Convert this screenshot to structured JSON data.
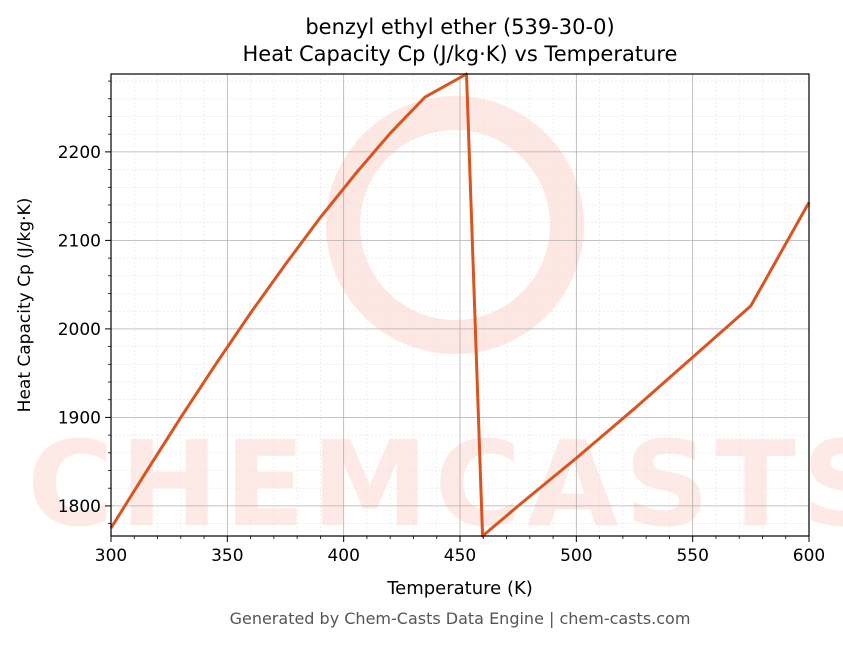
{
  "chart_data": {
    "type": "line",
    "title": "benzyl ethyl ether (539-30-0)",
    "subtitle": "Heat Capacity Cp (J/kg·K) vs Temperature",
    "xlabel": "Temperature (K)",
    "ylabel": "Heat Capacity Cp (J/kg·K)",
    "xlim": [
      300,
      600
    ],
    "ylim": [
      1766,
      2288
    ],
    "xticks": [
      300,
      350,
      400,
      450,
      500,
      550,
      600
    ],
    "yticks": [
      1800,
      1900,
      2000,
      2100,
      2200
    ],
    "grid": true,
    "minor_grid": true,
    "series": [
      {
        "color": "#d9541f",
        "x": [
          300,
          315,
          330,
          345,
          360,
          375,
          390,
          405,
          420,
          435,
          452.8,
          459.7,
          475,
          500,
          525,
          550,
          575,
          600
        ],
        "y": [
          1775,
          1838,
          1900,
          1960,
          2018,
          2073,
          2126,
          2175,
          2221,
          2262,
          2288,
          1766,
          1800,
          1854,
          1910,
          1968,
          2026,
          2143
        ]
      }
    ],
    "watermark": "CHEMCASTS"
  },
  "footer": "Generated by Chem-Casts Data Engine | chem-casts.com"
}
